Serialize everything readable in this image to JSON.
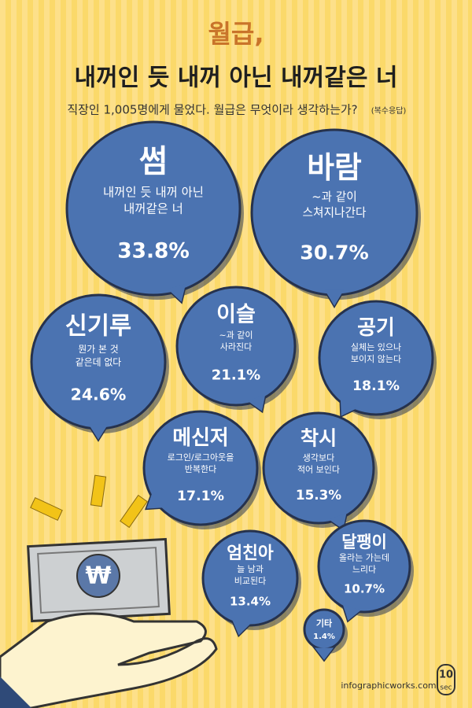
{
  "header": {
    "title": "월급,",
    "headline": "내꺼인 듯 내꺼 아닌 내꺼같은 너",
    "subtitle": "직장인 1,005명에게 물었다. 월급은 무엇이라 생각하는가?",
    "note": "(복수응답)"
  },
  "bubbles": [
    {
      "title": "썸",
      "description": [
        "내꺼인 듯 내꺼 아닌",
        "내꺼같은 너"
      ],
      "value": "33.8%"
    },
    {
      "title": "바람",
      "description": [
        "~과 같이",
        "스쳐지나간다"
      ],
      "value": "30.7%"
    },
    {
      "title": "신기루",
      "description": [
        "뭔가 본 것",
        "같은데 없다"
      ],
      "value": "24.6%"
    },
    {
      "title": "이슬",
      "description": [
        "~과 같이",
        "사라진다"
      ],
      "value": "21.1%"
    },
    {
      "title": "공기",
      "description": [
        "실체는 있으나",
        "보이지 않는다"
      ],
      "value": "18.1%"
    },
    {
      "title": "메신저",
      "description": [
        "로그인/로그아웃을",
        "반복한다"
      ],
      "value": "17.1%"
    },
    {
      "title": "착시",
      "description": [
        "생각보다",
        "적어 보인다"
      ],
      "value": "15.3%"
    },
    {
      "title": "엄친아",
      "description": [
        "늘 남과",
        "비교된다"
      ],
      "value": "13.4%"
    },
    {
      "title": "달팽이",
      "description": [
        "올라는 가는데",
        "느리다"
      ],
      "value": "10.7%"
    },
    {
      "title": "기타",
      "description": [],
      "value": "1.4%"
    }
  ],
  "footer": {
    "site": "infographicworks.com",
    "logo_top": "10",
    "logo_bottom": "sec"
  }
}
